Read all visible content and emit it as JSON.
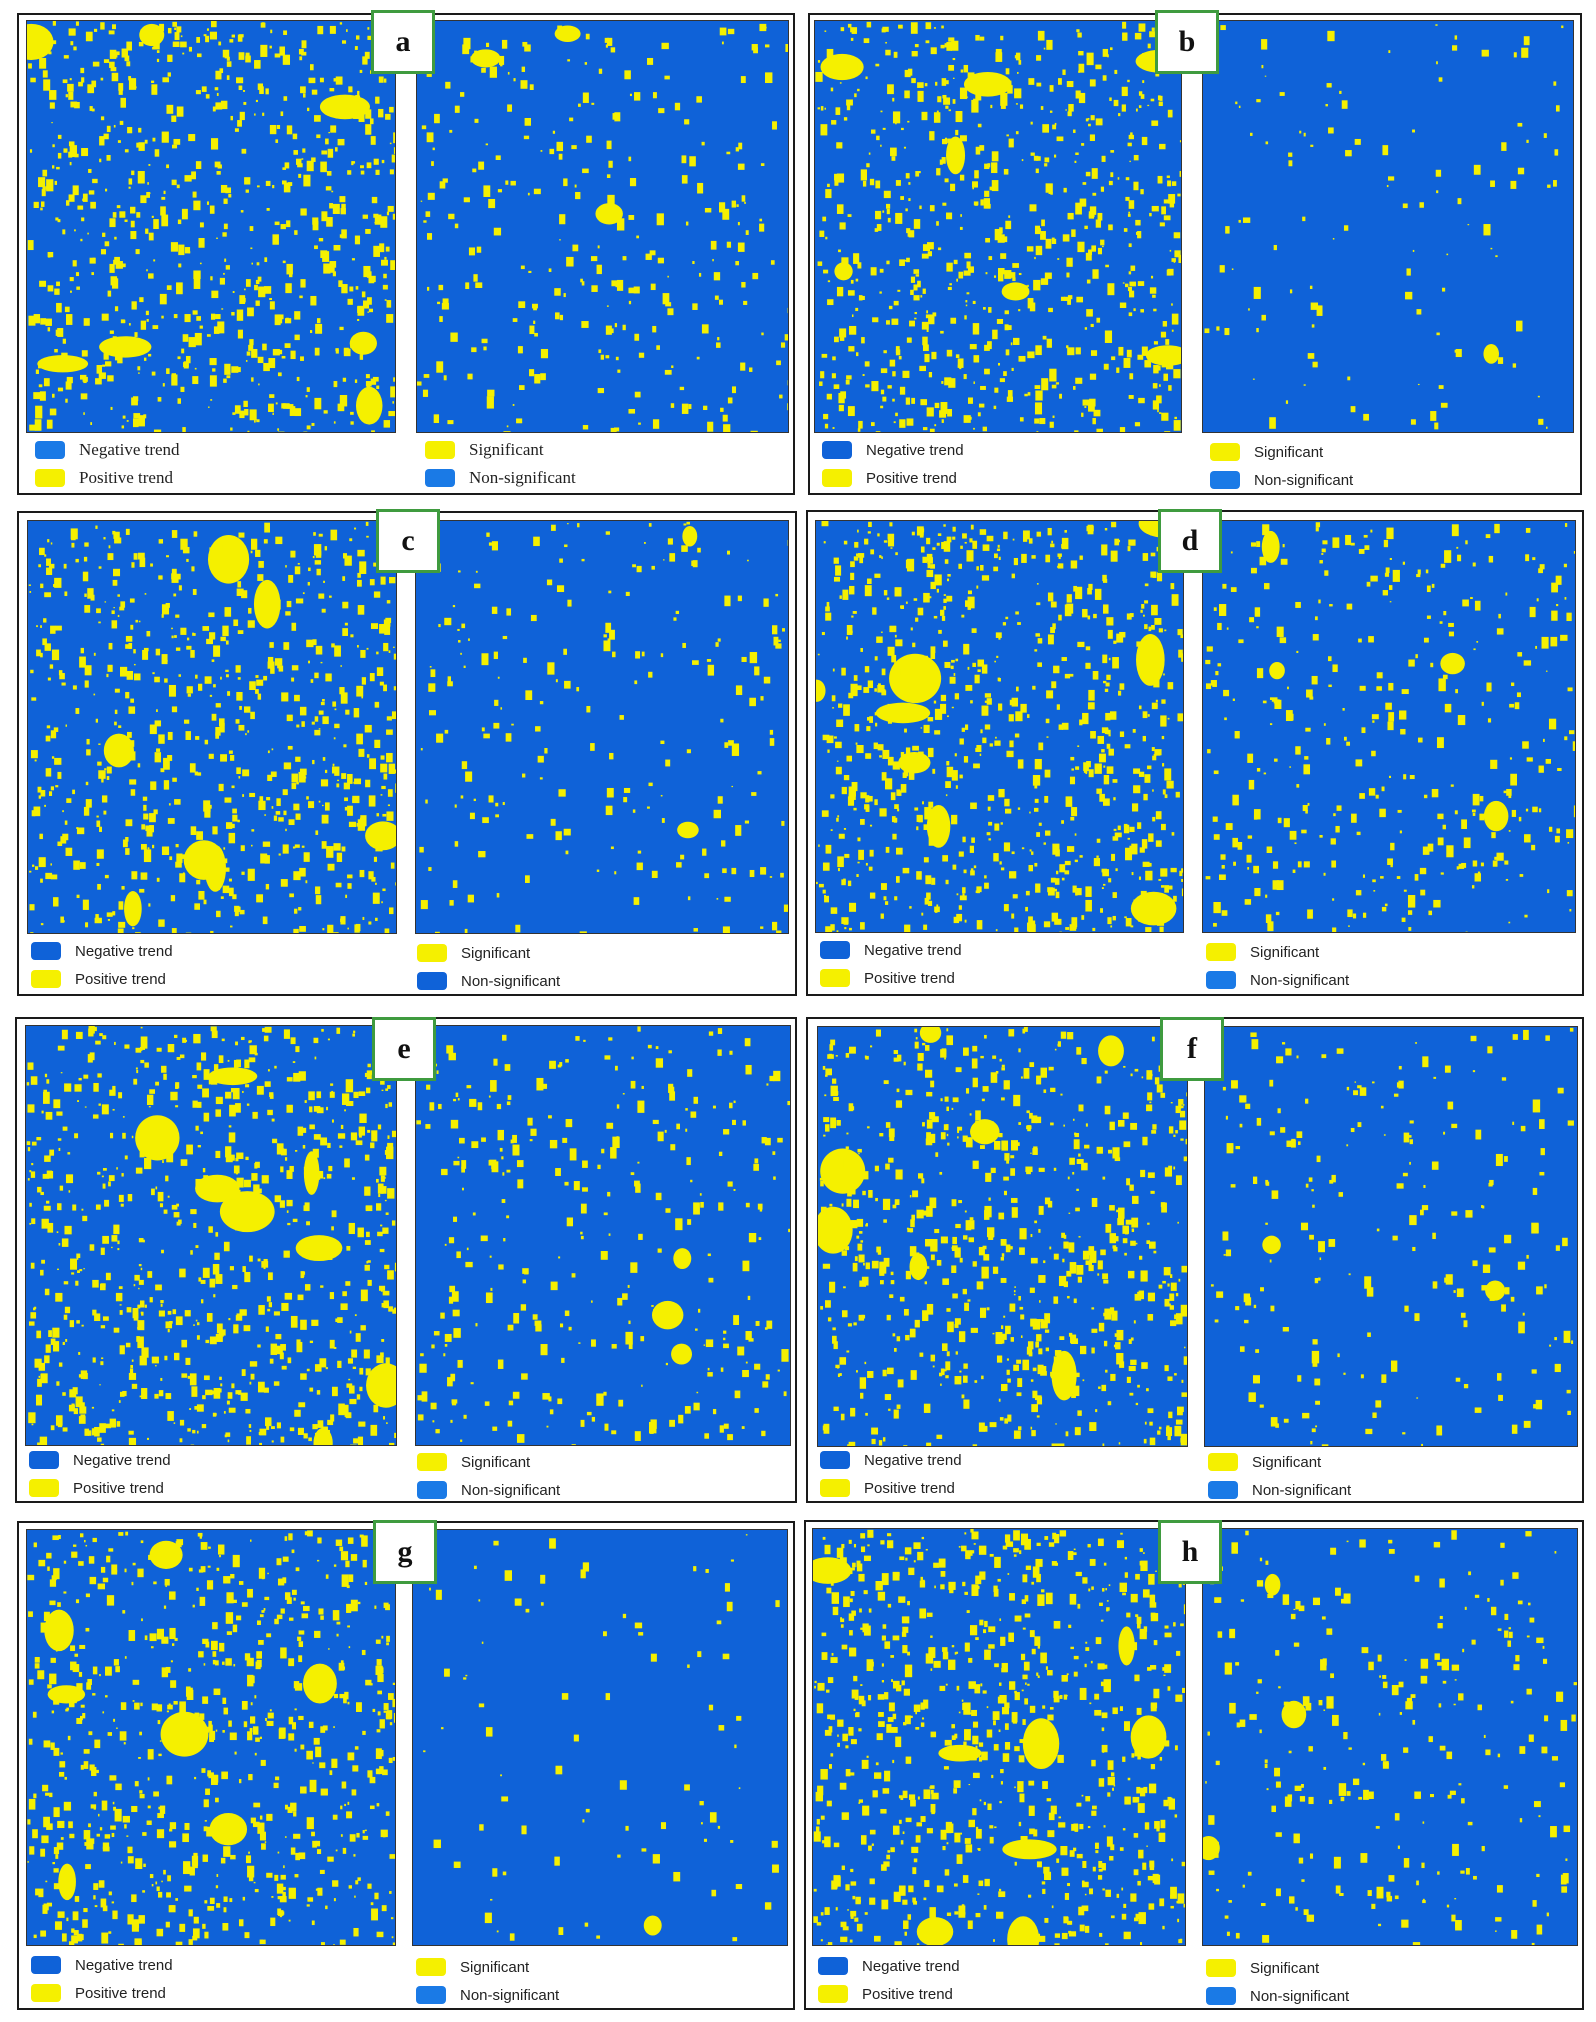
{
  "colors": {
    "yellow": "#f5f000",
    "blue": "#0f62d8",
    "blue_light": "#1a7ae6"
  },
  "panels": [
    {
      "letter": "a",
      "trend_legend": [
        "Negative trend",
        "Positive trend"
      ],
      "sig_legend": [
        "Significant",
        "Non-significant"
      ]
    },
    {
      "letter": "b",
      "trend_legend": [
        "Negative trend",
        "Positive trend"
      ],
      "sig_legend": [
        "Significant",
        "Non-significant"
      ]
    },
    {
      "letter": "c",
      "trend_legend": [
        "Negative trend",
        "Positive trend"
      ],
      "sig_legend": [
        "Significant",
        "Non-significant"
      ]
    },
    {
      "letter": "d",
      "trend_legend": [
        "Negative trend",
        "Positive trend"
      ],
      "sig_legend": [
        "Significant",
        "Non-significant"
      ]
    },
    {
      "letter": "e",
      "trend_legend": [
        "Negative trend",
        "Positive trend"
      ],
      "sig_legend": [
        "Significant",
        "Non-significant"
      ]
    },
    {
      "letter": "f",
      "trend_legend": [
        "Negative trend",
        "Positive trend"
      ],
      "sig_legend": [
        "Significant",
        "Non-significant"
      ]
    },
    {
      "letter": "g",
      "trend_legend": [
        "Negative trend",
        "Positive trend"
      ],
      "sig_legend": [
        "Significant",
        "Non-significant"
      ]
    },
    {
      "letter": "h",
      "trend_legend": [
        "Negative trend",
        "Positive trend"
      ],
      "sig_legend": [
        "Significant",
        "Non-significant"
      ]
    }
  ]
}
